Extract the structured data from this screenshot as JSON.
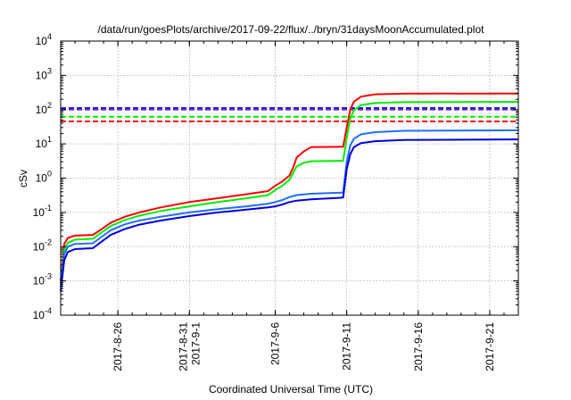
{
  "chart_data": {
    "type": "line",
    "title": "/data/run/goesPlots/archive/2017-09-22/flux/../bryn/31daysMoonAccumulated.plot",
    "xlabel": "Coordinated Universal Time (UTC)",
    "ylabel": "cSv",
    "xscale": "time",
    "yscale": "log",
    "xlim": [
      "2017-08-22",
      "2017-09-23"
    ],
    "ylim": [
      0.0001,
      10000
    ],
    "grid": true,
    "x_ticks": [
      {
        "date": "2017-08-26",
        "lines": [
          "2017-8-26"
        ]
      },
      {
        "date": "2017-08-31",
        "lines": [
          "2017-8-31",
          "2017-9-1"
        ]
      },
      {
        "date": "2017-09-06",
        "lines": [
          "2017-9-6"
        ]
      },
      {
        "date": "2017-09-11",
        "lines": [
          "2017-9-11"
        ]
      },
      {
        "date": "2017-09-16",
        "lines": [
          "2017-9-16"
        ]
      },
      {
        "date": "2017-09-21",
        "lines": [
          "2017-9-21"
        ]
      }
    ],
    "y_ticks": [
      {
        "value": 0.0001,
        "base": "10",
        "exp": "-4"
      },
      {
        "value": 0.001,
        "base": "10",
        "exp": "-3"
      },
      {
        "value": 0.01,
        "base": "10",
        "exp": "-2"
      },
      {
        "value": 0.1,
        "base": "10",
        "exp": "-1"
      },
      {
        "value": 1,
        "base": "10",
        "exp": "0"
      },
      {
        "value": 10,
        "base": "10",
        "exp": "1"
      },
      {
        "value": 100,
        "base": "10",
        "exp": "2"
      },
      {
        "value": 1000,
        "base": "10",
        "exp": "3"
      },
      {
        "value": 10000,
        "base": "10",
        "exp": "4"
      }
    ],
    "thresholds": [
      {
        "value": 110,
        "color": "#0000ff"
      },
      {
        "value": 100,
        "color": "#7b2fbf"
      },
      {
        "value": 62,
        "color": "#00ee00"
      },
      {
        "value": 45,
        "color": "#ff0000"
      }
    ],
    "series": [
      {
        "color": "#ff0000",
        "points": [
          [
            "2017-08-22 00:00",
            0.001
          ],
          [
            "2017-08-22 06:00",
            0.012
          ],
          [
            "2017-08-22 12:00",
            0.018
          ],
          [
            "2017-08-23 00:00",
            0.021
          ],
          [
            "2017-08-24 06:00",
            0.022
          ],
          [
            "2017-08-24 18:00",
            0.03
          ],
          [
            "2017-08-25 12:00",
            0.05
          ],
          [
            "2017-08-26 12:00",
            0.075
          ],
          [
            "2017-08-27 12:00",
            0.1
          ],
          [
            "2017-08-29 00:00",
            0.14
          ],
          [
            "2017-08-31 00:00",
            0.2
          ],
          [
            "2017-09-02 00:00",
            0.26
          ],
          [
            "2017-09-04 00:00",
            0.34
          ],
          [
            "2017-09-05 12:00",
            0.42
          ],
          [
            "2017-09-06 00:00",
            0.6
          ],
          [
            "2017-09-06 12:00",
            0.8
          ],
          [
            "2017-09-07 00:00",
            1.2
          ],
          [
            "2017-09-07 06:00",
            2.0
          ],
          [
            "2017-09-07 12:00",
            4.0
          ],
          [
            "2017-09-08 00:00",
            6.0
          ],
          [
            "2017-09-08 12:00",
            8.0
          ],
          [
            "2017-09-10 18:00",
            8.2
          ],
          [
            "2017-09-11 00:00",
            30
          ],
          [
            "2017-09-11 06:00",
            100
          ],
          [
            "2017-09-11 12:00",
            170
          ],
          [
            "2017-09-12 00:00",
            240
          ],
          [
            "2017-09-13 00:00",
            280
          ],
          [
            "2017-09-15 00:00",
            292
          ],
          [
            "2017-09-23 00:00",
            295
          ]
        ]
      },
      {
        "color": "#00ee00",
        "points": [
          [
            "2017-08-22 00:00",
            0.0008
          ],
          [
            "2017-08-22 06:00",
            0.008
          ],
          [
            "2017-08-22 12:00",
            0.013
          ],
          [
            "2017-08-23 00:00",
            0.016
          ],
          [
            "2017-08-24 06:00",
            0.017
          ],
          [
            "2017-08-24 18:00",
            0.024
          ],
          [
            "2017-08-25 12:00",
            0.04
          ],
          [
            "2017-08-26 12:00",
            0.06
          ],
          [
            "2017-08-27 12:00",
            0.08
          ],
          [
            "2017-08-29 00:00",
            0.11
          ],
          [
            "2017-08-31 00:00",
            0.15
          ],
          [
            "2017-09-02 00:00",
            0.2
          ],
          [
            "2017-09-04 00:00",
            0.26
          ],
          [
            "2017-09-05 12:00",
            0.32
          ],
          [
            "2017-09-06 00:00",
            0.45
          ],
          [
            "2017-09-06 12:00",
            0.6
          ],
          [
            "2017-09-07 00:00",
            0.9
          ],
          [
            "2017-09-07 06:00",
            1.4
          ],
          [
            "2017-09-07 12:00",
            2.2
          ],
          [
            "2017-09-08 00:00",
            2.8
          ],
          [
            "2017-09-08 12:00",
            3.1
          ],
          [
            "2017-09-10 18:00",
            3.2
          ],
          [
            "2017-09-11 00:00",
            15
          ],
          [
            "2017-09-11 06:00",
            55
          ],
          [
            "2017-09-11 12:00",
            95
          ],
          [
            "2017-09-12 00:00",
            135
          ],
          [
            "2017-09-13 00:00",
            155
          ],
          [
            "2017-09-15 00:00",
            165
          ],
          [
            "2017-09-23 00:00",
            168
          ]
        ]
      },
      {
        "color": "#1e6fff",
        "points": [
          [
            "2017-08-22 00:00",
            0.0007
          ],
          [
            "2017-08-22 06:00",
            0.006
          ],
          [
            "2017-08-22 12:00",
            0.01
          ],
          [
            "2017-08-23 00:00",
            0.012
          ],
          [
            "2017-08-24 06:00",
            0.0125
          ],
          [
            "2017-08-24 18:00",
            0.018
          ],
          [
            "2017-08-25 12:00",
            0.03
          ],
          [
            "2017-08-26 12:00",
            0.045
          ],
          [
            "2017-08-27 12:00",
            0.058
          ],
          [
            "2017-08-29 00:00",
            0.075
          ],
          [
            "2017-08-31 00:00",
            0.1
          ],
          [
            "2017-09-02 00:00",
            0.125
          ],
          [
            "2017-09-04 00:00",
            0.15
          ],
          [
            "2017-09-05 12:00",
            0.18
          ],
          [
            "2017-09-06 00:00",
            0.2
          ],
          [
            "2017-09-06 12:00",
            0.23
          ],
          [
            "2017-09-07 00:00",
            0.28
          ],
          [
            "2017-09-07 12:00",
            0.32
          ],
          [
            "2017-09-08 12:00",
            0.35
          ],
          [
            "2017-09-10 18:00",
            0.38
          ],
          [
            "2017-09-11 00:00",
            3
          ],
          [
            "2017-09-11 06:00",
            9
          ],
          [
            "2017-09-11 12:00",
            14
          ],
          [
            "2017-09-12 00:00",
            19
          ],
          [
            "2017-09-13 00:00",
            22
          ],
          [
            "2017-09-15 00:00",
            24
          ],
          [
            "2017-09-23 00:00",
            25
          ]
        ]
      },
      {
        "color": "#0000dd",
        "points": [
          [
            "2017-08-22 00:00",
            0.0005
          ],
          [
            "2017-08-22 06:00",
            0.004
          ],
          [
            "2017-08-22 12:00",
            0.007
          ],
          [
            "2017-08-23 00:00",
            0.0085
          ],
          [
            "2017-08-24 06:00",
            0.009
          ],
          [
            "2017-08-24 18:00",
            0.013
          ],
          [
            "2017-08-25 12:00",
            0.022
          ],
          [
            "2017-08-26 12:00",
            0.033
          ],
          [
            "2017-08-27 12:00",
            0.044
          ],
          [
            "2017-08-29 00:00",
            0.058
          ],
          [
            "2017-08-31 00:00",
            0.078
          ],
          [
            "2017-09-02 00:00",
            0.1
          ],
          [
            "2017-09-04 00:00",
            0.12
          ],
          [
            "2017-09-05 12:00",
            0.14
          ],
          [
            "2017-09-06 00:00",
            0.15
          ],
          [
            "2017-09-06 12:00",
            0.17
          ],
          [
            "2017-09-07 00:00",
            0.2
          ],
          [
            "2017-09-07 12:00",
            0.22
          ],
          [
            "2017-09-08 12:00",
            0.24
          ],
          [
            "2017-09-10 18:00",
            0.27
          ],
          [
            "2017-09-11 00:00",
            1.8
          ],
          [
            "2017-09-11 06:00",
            5
          ],
          [
            "2017-09-11 12:00",
            8
          ],
          [
            "2017-09-12 00:00",
            10.5
          ],
          [
            "2017-09-13 00:00",
            12
          ],
          [
            "2017-09-15 00:00",
            13
          ],
          [
            "2017-09-23 00:00",
            13.5
          ]
        ]
      }
    ]
  }
}
